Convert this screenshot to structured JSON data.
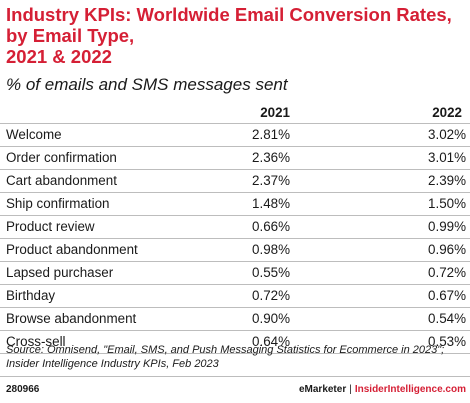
{
  "chart_data": {
    "type": "table",
    "title_lines": [
      "Industry KPIs: Worldwide Email Conversion Rates,",
      "by Email Type,",
      "2021 & 2022"
    ],
    "subtitle": "% of emails and SMS messages sent",
    "columns": [
      "2021",
      "2022"
    ],
    "rows": [
      {
        "label": "Welcome",
        "v2021": "2.81%",
        "v2022": "3.02%"
      },
      {
        "label": "Order confirmation",
        "v2021": "2.36%",
        "v2022": "3.01%"
      },
      {
        "label": "Cart abandonment",
        "v2021": "2.37%",
        "v2022": "2.39%"
      },
      {
        "label": "Ship confirmation",
        "v2021": "1.48%",
        "v2022": "1.50%"
      },
      {
        "label": "Product review",
        "v2021": "0.66%",
        "v2022": "0.99%"
      },
      {
        "label": "Product abandonment",
        "v2021": "0.98%",
        "v2022": "0.96%"
      },
      {
        "label": "Lapsed purchaser",
        "v2021": "0.55%",
        "v2022": "0.72%"
      },
      {
        "label": "Birthday",
        "v2021": "0.72%",
        "v2022": "0.67%"
      },
      {
        "label": "Browse abandonment",
        "v2021": "0.90%",
        "v2022": "0.54%"
      },
      {
        "label": "Cross-sell",
        "v2021": "0.64%",
        "v2022": "0.53%"
      }
    ],
    "source_lines": [
      "Source: Omnisend, \"Email, SMS, and Push Messaging Statistics for Ecommerce in 2023\";",
      "Insider Intelligence Industry KPIs, Feb 2023"
    ]
  },
  "footer": {
    "chart_id": "280966",
    "brand_left": "eMarketer",
    "separator": "|",
    "brand_right": "InsiderIntelligence.com"
  },
  "colors": {
    "title": "#d51f35",
    "rule": "#bdbdbd"
  }
}
